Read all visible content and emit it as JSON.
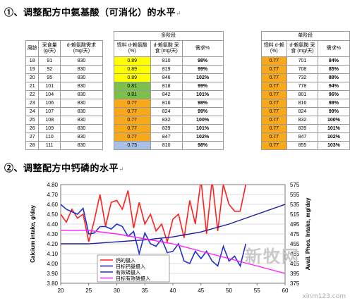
{
  "doc": {
    "heading1": "①、调整配方中氨基酸（可消化）的水平",
    "heading2": "②、调整配方中钙磷的水平",
    "para_mark": "↵",
    "watermark_main": "新牧网",
    "watermark_url": "xinm123.com"
  },
  "table": {
    "group_multi": "多阶段",
    "group_single": "单阶段",
    "headers": [
      "周龄",
      "采食量 (g/天)",
      "d-赖氨酸需求 (mg/天)",
      "饲料 d-赖氨酸 (%)",
      "d-赖氨酸 采食 (mg/天)",
      "需求%",
      "饲料 d-赖 (%)",
      "d-赖氨酸 采食 (mg/天)",
      "需求%"
    ],
    "rows": [
      {
        "week": "18",
        "feed": "91",
        "req": "830",
        "m_lys": "0.89",
        "m_int": "810",
        "m_pct": "98%",
        "s_lys": "0.77",
        "s_int": "701",
        "s_pct": "84%",
        "c": "y"
      },
      {
        "week": "19",
        "feed": "92",
        "req": "830",
        "m_lys": "0.89",
        "m_int": "819",
        "m_pct": "99%",
        "s_lys": "0.77",
        "s_int": "708",
        "s_pct": "85%",
        "c": "y"
      },
      {
        "week": "20",
        "feed": "95",
        "req": "830",
        "m_lys": "0.89",
        "m_int": "846",
        "m_pct": "102%",
        "s_lys": "0.77",
        "s_int": "732",
        "s_pct": "88%",
        "c": "y"
      },
      {
        "week": "21",
        "feed": "101",
        "req": "830",
        "m_lys": "0.81",
        "m_int": "818",
        "m_pct": "99%",
        "s_lys": "0.77",
        "s_int": "778",
        "s_pct": "94%",
        "c": "g"
      },
      {
        "week": "22",
        "feed": "104",
        "req": "830",
        "m_lys": "0.81",
        "m_int": "842",
        "m_pct": "101%",
        "s_lys": "0.77",
        "s_int": "801",
        "s_pct": "96%",
        "c": "g"
      },
      {
        "week": "23",
        "feed": "106",
        "req": "830",
        "m_lys": "0.77",
        "m_int": "816",
        "m_pct": "98%",
        "s_lys": "0.77",
        "s_int": "816",
        "s_pct": "98%",
        "c": "o"
      },
      {
        "week": "24",
        "feed": "107",
        "req": "830",
        "m_lys": "0.77",
        "m_int": "824",
        "m_pct": "99%",
        "s_lys": "0.77",
        "s_int": "824",
        "s_pct": "99%",
        "c": "o"
      },
      {
        "week": "25",
        "feed": "108",
        "req": "830",
        "m_lys": "0.77",
        "m_int": "832",
        "m_pct": "100%",
        "s_lys": "0.77",
        "s_int": "832",
        "s_pct": "100%",
        "c": "o"
      },
      {
        "week": "26",
        "feed": "109",
        "req": "830",
        "m_lys": "0.77",
        "m_int": "839",
        "m_pct": "101%",
        "s_lys": "0.77",
        "s_int": "839",
        "s_pct": "101%",
        "c": "o"
      },
      {
        "week": "27",
        "feed": "110",
        "req": "830",
        "m_lys": "0.77",
        "m_int": "847",
        "m_pct": "102%",
        "s_lys": "0.77",
        "s_int": "847",
        "s_pct": "102%",
        "c": "o"
      },
      {
        "week": "28",
        "feed": "111",
        "req": "830",
        "m_lys": "0.73",
        "m_int": "810",
        "m_pct": "98%",
        "s_lys": "0.77",
        "s_int": "855",
        "s_pct": "103%",
        "c": "b"
      }
    ]
  },
  "chart_data": {
    "type": "line",
    "ylabel": "Calcium intake, g/day",
    "y2label": "Avail. Phos. Intake, mg/day",
    "xlim": [
      20,
      60
    ],
    "xticks": [
      20,
      25,
      30,
      35,
      40,
      45,
      50,
      55,
      60
    ],
    "ylim": [
      3.8,
      4.8
    ],
    "yticks": [
      "4.80",
      "4.70",
      "4.60",
      "4.50",
      "4.40",
      "4.30",
      "4.20",
      "4.10",
      "4.00",
      "3.90",
      "3.80"
    ],
    "y2lim": [
      375,
      575
    ],
    "y2ticks": [
      "575",
      "555",
      "535",
      "515",
      "495",
      "475",
      "455",
      "435",
      "415",
      "395",
      "375"
    ],
    "legend": [
      "钙的摄入",
      "目标钙量摄入",
      "有效磷摄入",
      "目标有效磷摄入"
    ],
    "colors": {
      "ca": "#ff2020",
      "ca_target": "#1c1c9c",
      "p": "#2030d0",
      "p_target": "#ff22ff"
    },
    "series": [
      {
        "name": "钙的摄入",
        "axis": "left",
        "x": [
          20,
          21,
          22,
          23,
          24,
          25,
          26,
          27,
          28,
          29,
          30,
          31,
          32,
          33,
          34,
          35,
          36,
          37,
          38,
          39,
          40,
          41,
          42,
          43,
          44,
          45,
          46,
          47,
          48,
          49,
          50,
          51,
          52,
          53
        ],
        "y": [
          4.5,
          4.42,
          4.55,
          4.46,
          4.5,
          4.22,
          4.44,
          4.7,
          4.38,
          4.62,
          4.64,
          4.55,
          4.74,
          4.36,
          4.62,
          4.4,
          4.5,
          4.33,
          4.4,
          4.22,
          4.45,
          4.5,
          4.26,
          4.64,
          4.4,
          4.85,
          4.3,
          4.85,
          4.33,
          4.8,
          4.6,
          4.53,
          4.53,
          4.8
        ]
      },
      {
        "name": "目标钙量摄入",
        "axis": "left",
        "x": [
          20,
          25,
          30,
          35,
          40,
          45,
          50,
          55,
          58,
          60
        ],
        "y": [
          4.2,
          4.2,
          4.22,
          4.24,
          4.27,
          4.32,
          4.4,
          4.5,
          4.56,
          4.6
        ]
      },
      {
        "name": "有效磷摄入",
        "axis": "right",
        "x": [
          20,
          21,
          22,
          23,
          24,
          25,
          26,
          27,
          28,
          29,
          30,
          31,
          32,
          33,
          34,
          35,
          36,
          37,
          38,
          39,
          40,
          41,
          42,
          43,
          44,
          45,
          46,
          47,
          48,
          49,
          50,
          51,
          52,
          53
        ],
        "y": [
          535,
          525,
          520,
          515,
          527,
          475,
          477,
          490,
          490,
          485,
          495,
          490,
          470,
          480,
          435,
          477,
          455,
          450,
          465,
          437,
          440,
          455,
          420,
          415,
          440,
          425,
          440,
          420,
          410,
          450,
          420,
          430,
          410,
          455
        ]
      },
      {
        "name": "目标有效磷摄入",
        "axis": "right",
        "x": [
          20,
          25,
          30,
          35,
          40,
          45,
          50,
          55,
          60
        ],
        "y": [
          482,
          482,
          475,
          465,
          455,
          440,
          425,
          410,
          395
        ]
      }
    ]
  }
}
